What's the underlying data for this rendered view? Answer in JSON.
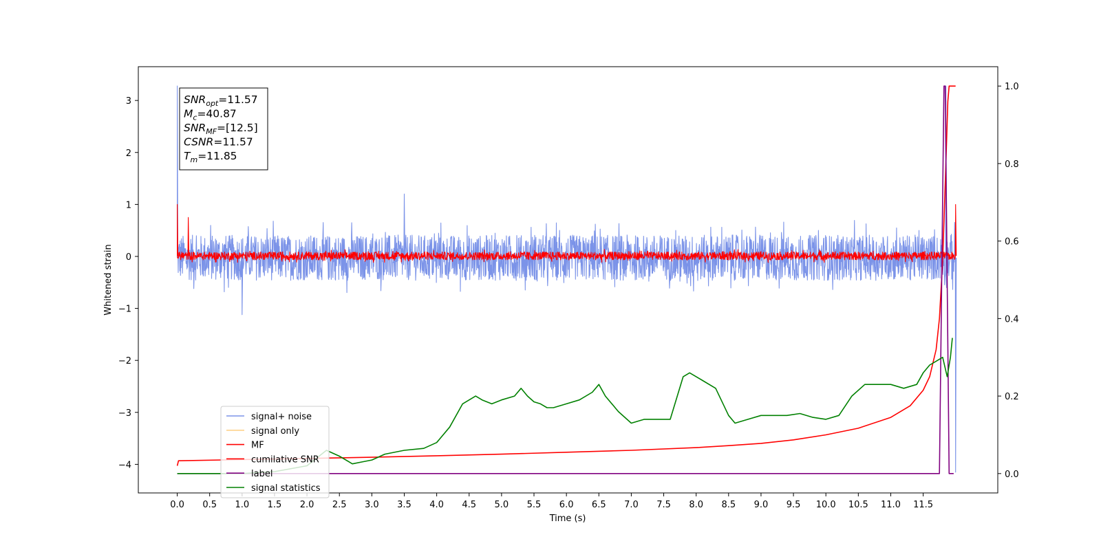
{
  "chart_data": {
    "type": "line",
    "xlabel": "Time (s)",
    "ylabel": "Whitened strain",
    "xlim": [
      -0.6,
      12.65
    ],
    "ylim": [
      -4.55,
      3.65
    ],
    "y2lim": [
      -0.05,
      1.05
    ],
    "x_ticks": [
      "0.0",
      "0.5",
      "1.0",
      "1.5",
      "2.0",
      "2.5",
      "3.0",
      "3.5",
      "4.0",
      "4.5",
      "5.0",
      "5.5",
      "6.0",
      "6.5",
      "7.0",
      "7.5",
      "8.0",
      "8.5",
      "9.0",
      "9.5",
      "10.0",
      "10.5",
      "11.0",
      "11.5"
    ],
    "y_ticks": [
      "3",
      "2",
      "1",
      "0",
      "−1",
      "−2",
      "−3",
      "−4"
    ],
    "y2_ticks": [
      "1.0",
      "0.8",
      "0.6",
      "0.4",
      "0.2",
      "0.0"
    ],
    "annotation": [
      {
        "base": "SNR",
        "sub": "opt",
        "rest": "=11.57"
      },
      {
        "base": "M",
        "sub": "c",
        "rest": "=40.87"
      },
      {
        "base": "SNR",
        "sub": "MF",
        "rest": "=[12.5]"
      },
      {
        "base": "CSNR",
        "sub": "",
        "rest": "=11.57"
      },
      {
        "base": "T",
        "sub": "m",
        "rest": "=11.85"
      }
    ],
    "legend_position": "lower-left",
    "legend": [
      {
        "label": "signal+ noise",
        "color": "#7b93e8"
      },
      {
        "label": "signal only",
        "color": "#fdd28a"
      },
      {
        "label": "MF",
        "color": "#ff0000"
      },
      {
        "label": "cumilative SNR",
        "color": "#ff0000"
      },
      {
        "label": "label",
        "color": "#800080"
      },
      {
        "label": "signal statistics",
        "color": "#008000"
      }
    ],
    "series": [
      {
        "name": "signal+ noise",
        "axis": "left",
        "color": "#7b93e8",
        "style": "noise",
        "x_range": [
          0.0,
          12.0
        ],
        "center": -0.12,
        "typical_range": [
          -0.65,
          0.6
        ],
        "extremes": [
          {
            "x": 0.0,
            "y": 3.28
          },
          {
            "x": 1.0,
            "y": -1.12
          },
          {
            "x": 3.5,
            "y": 1.2
          },
          {
            "x": 11.85,
            "y": 3.28
          },
          {
            "x": 12.0,
            "y": -4.15
          }
        ]
      },
      {
        "name": "MF",
        "axis": "left",
        "color": "#ff0000",
        "style": "noise",
        "x_range": [
          0.0,
          12.0
        ],
        "center": 0.0,
        "typical_range": [
          -0.1,
          0.12
        ],
        "extremes": [
          {
            "x": 0.0,
            "y": 1.0
          },
          {
            "x": 0.17,
            "y": 0.75
          },
          {
            "x": 12.0,
            "y": 1.0
          }
        ]
      },
      {
        "name": "cumilative SNR",
        "axis": "right",
        "color": "#ff0000",
        "x": [
          0.0,
          0.02,
          1.0,
          2.0,
          3.0,
          4.0,
          5.0,
          6.0,
          7.0,
          8.0,
          8.5,
          9.0,
          9.5,
          10.0,
          10.5,
          11.0,
          11.3,
          11.5,
          11.6,
          11.7,
          11.75,
          11.8,
          11.85,
          11.88,
          11.9,
          11.92,
          12.0
        ],
        "y": [
          0.02,
          0.033,
          0.036,
          0.039,
          0.042,
          0.046,
          0.05,
          0.055,
          0.06,
          0.067,
          0.072,
          0.078,
          0.087,
          0.1,
          0.117,
          0.145,
          0.175,
          0.215,
          0.25,
          0.32,
          0.4,
          0.55,
          0.8,
          0.96,
          1.0,
          1.0,
          1.0
        ]
      },
      {
        "name": "label",
        "axis": "right",
        "color": "#800080",
        "x": [
          0.0,
          11.75,
          11.82,
          11.84,
          11.9,
          11.97
        ],
        "y": [
          0.0,
          0.0,
          1.0,
          1.0,
          0.0,
          0.0
        ]
      },
      {
        "name": "signal statistics",
        "axis": "right",
        "color": "#008000",
        "x": [
          0.0,
          0.5,
          1.0,
          1.5,
          2.0,
          2.3,
          2.5,
          2.7,
          2.85,
          3.0,
          3.2,
          3.5,
          3.8,
          4.0,
          4.2,
          4.4,
          4.6,
          4.7,
          4.85,
          5.0,
          5.2,
          5.3,
          5.4,
          5.5,
          5.6,
          5.7,
          5.8,
          6.0,
          6.2,
          6.4,
          6.5,
          6.6,
          6.8,
          7.0,
          7.2,
          7.4,
          7.6,
          7.8,
          7.9,
          8.1,
          8.3,
          8.5,
          8.6,
          8.8,
          9.0,
          9.2,
          9.4,
          9.6,
          9.8,
          10.0,
          10.2,
          10.4,
          10.6,
          10.8,
          11.0,
          11.2,
          11.4,
          11.5,
          11.6,
          11.7,
          11.8,
          11.87,
          11.92,
          11.95
        ],
        "y": [
          0.0,
          0.0,
          0.0,
          0.005,
          0.02,
          0.06,
          0.045,
          0.025,
          0.03,
          0.035,
          0.05,
          0.06,
          0.065,
          0.08,
          0.12,
          0.18,
          0.2,
          0.19,
          0.18,
          0.19,
          0.2,
          0.22,
          0.2,
          0.185,
          0.18,
          0.17,
          0.17,
          0.18,
          0.19,
          0.21,
          0.23,
          0.2,
          0.16,
          0.13,
          0.14,
          0.14,
          0.14,
          0.25,
          0.26,
          0.24,
          0.22,
          0.15,
          0.13,
          0.14,
          0.15,
          0.15,
          0.15,
          0.155,
          0.145,
          0.14,
          0.15,
          0.2,
          0.23,
          0.23,
          0.23,
          0.22,
          0.23,
          0.26,
          0.28,
          0.29,
          0.3,
          0.25,
          0.3,
          0.35
        ]
      }
    ]
  }
}
